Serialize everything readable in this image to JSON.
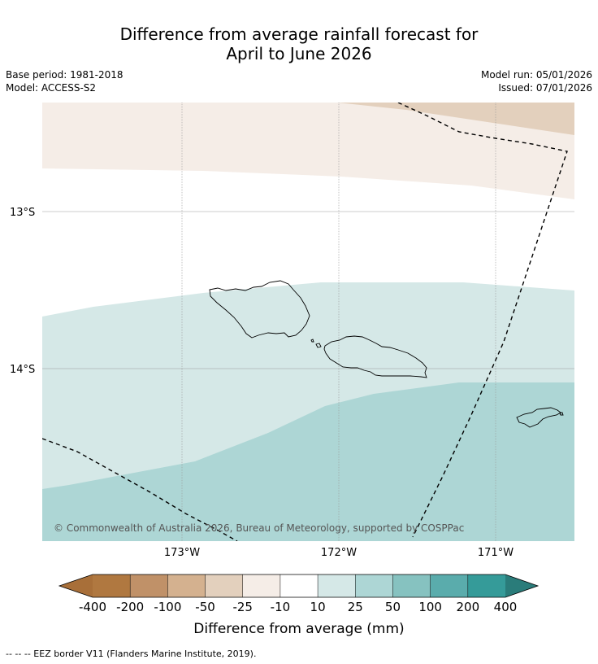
{
  "title": {
    "line1": "Difference from average rainfall forecast for",
    "line2": "April to June 2026"
  },
  "meta": {
    "base_period": "Base period: 1981-2018",
    "model": "Model: ACCESS-S2",
    "model_run": "Model run: 05/01/2026",
    "issued": "Issued: 07/01/2026"
  },
  "map": {
    "latitude_labels": [
      "13°S",
      "14°S"
    ],
    "longitude_labels": [
      "173°W",
      "172°W",
      "171°W"
    ],
    "copyright": "© Commonwealth of Australia 2026, Bureau of Meteorology, supported by COSPPac"
  },
  "colorbar": {
    "tick_labels": [
      "-400",
      "-200",
      "-100",
      "-50",
      "-25",
      "-10",
      "10",
      "25",
      "50",
      "100",
      "200",
      "400"
    ],
    "colors": [
      "#a86f39",
      "#b07840",
      "#c09168",
      "#d4b18f",
      "#e3d0bd",
      "#f5ede7",
      "#ffffff",
      "#d5e8e7",
      "#add6d5",
      "#86c2c0",
      "#5aacac",
      "#359b99",
      "#2a7c7a"
    ],
    "label": "Difference from average (mm)"
  },
  "footer": {
    "legend_text": "--  --  -- EEZ border V11 (Flanders Marine Institute, 2019)."
  }
}
